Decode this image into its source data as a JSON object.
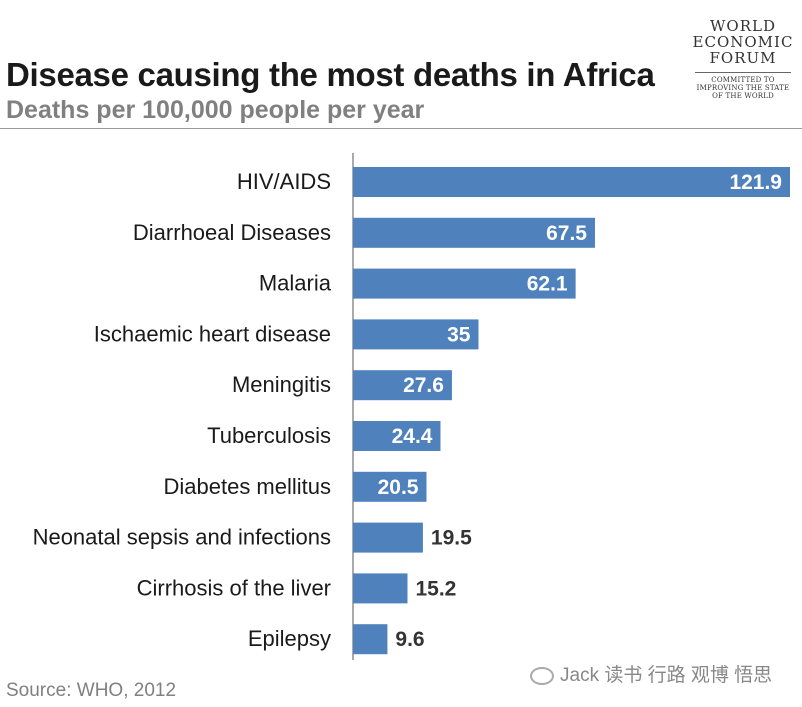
{
  "title": "Disease causing the most deaths in Africa",
  "subtitle": "Deaths per 100,000 people per year",
  "source": "Source: WHO, 2012",
  "logo": {
    "lines": [
      "WORLD",
      "ECONOMIC",
      "FORUM"
    ],
    "tagline": [
      "COMMITTED TO",
      "IMPROVING THE STATE",
      "OF THE WORLD"
    ]
  },
  "watermark": "Jack 读书 行路 观博 悟思",
  "colors": {
    "bar": "#4f81bd",
    "label_inside": "#ffffff",
    "label_outside": "#333333",
    "axis": "#555555"
  },
  "chart_data": {
    "type": "bar",
    "orientation": "horizontal",
    "categories": [
      "HIV/AIDS",
      "Diarrhoeal Diseases",
      "Malaria",
      "Ischaemic heart disease",
      "Meningitis",
      "Tuberculosis",
      "Diabetes mellitus",
      "Neonatal sepsis and infections",
      "Cirrhosis of the liver",
      "Epilepsy"
    ],
    "values": [
      121.9,
      67.5,
      62.1,
      35,
      27.6,
      24.4,
      20.5,
      19.5,
      15.2,
      9.6
    ],
    "value_labels": [
      "121.9",
      "67.5",
      "62.1",
      "35",
      "27.6",
      "24.4",
      "20.5",
      "19.5",
      "15.2",
      "9.6"
    ],
    "xlim": [
      0,
      121.9
    ],
    "grid": false,
    "legend": "none"
  }
}
